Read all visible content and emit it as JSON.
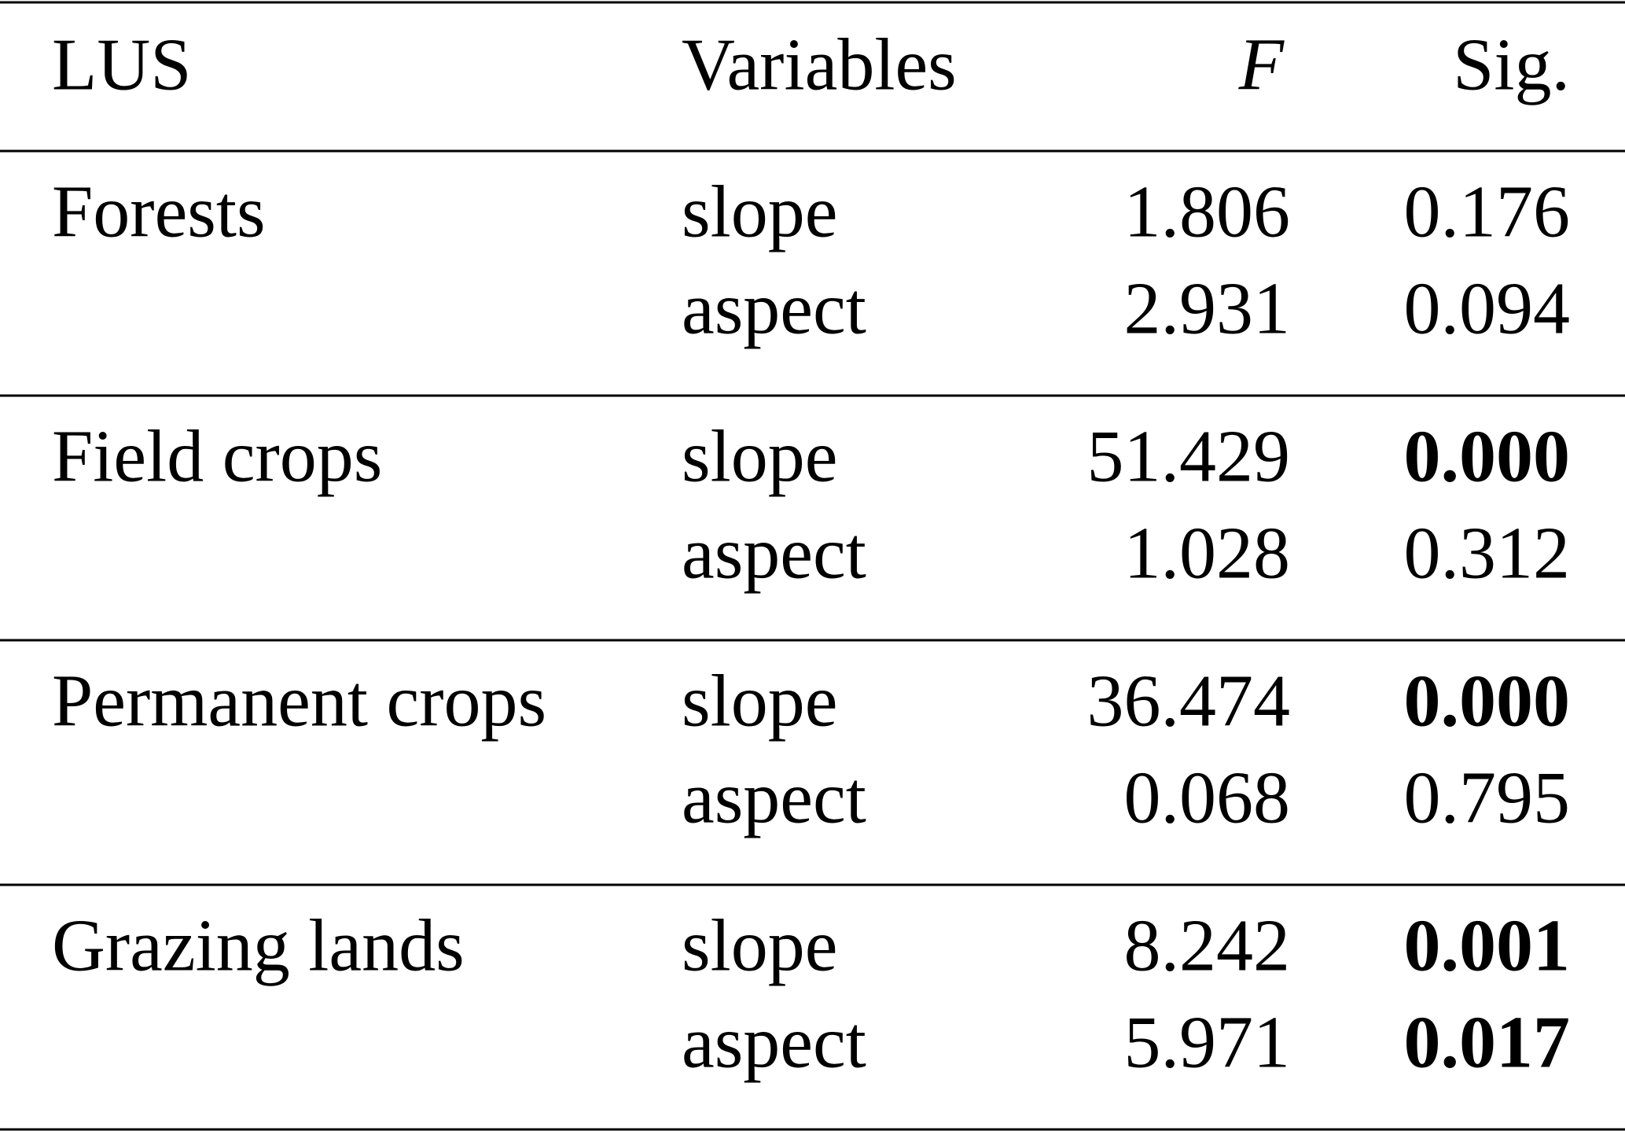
{
  "table": {
    "header": {
      "lus": "LUS",
      "variables": "Variables",
      "f": "F",
      "sig": "Sig."
    },
    "groups": [
      {
        "lus": "Forests",
        "rows": [
          {
            "variable": "slope",
            "f": "1.806",
            "sig": "0.176",
            "sig_bold": false
          },
          {
            "variable": "aspect",
            "f": "2.931",
            "sig": "0.094",
            "sig_bold": false
          }
        ]
      },
      {
        "lus": "Field crops",
        "rows": [
          {
            "variable": "slope",
            "f": "51.429",
            "sig": "0.000",
            "sig_bold": true
          },
          {
            "variable": "aspect",
            "f": "1.028",
            "sig": "0.312",
            "sig_bold": false
          }
        ]
      },
      {
        "lus": "Permanent crops",
        "rows": [
          {
            "variable": "slope",
            "f": "36.474",
            "sig": "0.000",
            "sig_bold": true
          },
          {
            "variable": "aspect",
            "f": "0.068",
            "sig": "0.795",
            "sig_bold": false
          }
        ]
      },
      {
        "lus": "Grazing lands",
        "rows": [
          {
            "variable": "slope",
            "f": "8.242",
            "sig": "0.001",
            "sig_bold": true
          },
          {
            "variable": "aspect",
            "f": "5.971",
            "sig": "0.017",
            "sig_bold": true
          }
        ]
      }
    ]
  }
}
